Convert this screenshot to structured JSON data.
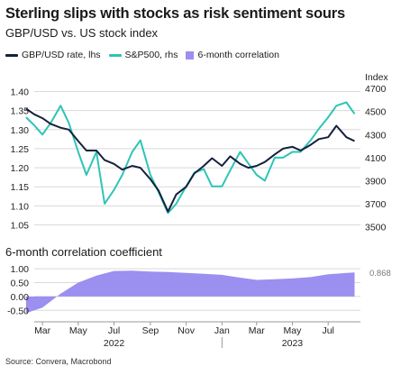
{
  "title": "Sterling slips with stocks as risk sentiment sours",
  "subtitle": "GBP/USD vs. US stock index",
  "source": "Source: Convera, Macrobond",
  "colors": {
    "gbpusd": "#14213d",
    "sp500": "#2ec4b6",
    "correlation": "#9b8ff0",
    "grid": "#d9d9d9"
  },
  "chart_data": [
    {
      "type": "line",
      "legend": [
        {
          "name": "GBP/USD rate, lhs",
          "swatch": "line",
          "color": "#14213d"
        },
        {
          "name": "S&P500, rhs",
          "swatch": "line",
          "color": "#2ec4b6"
        },
        {
          "name": "6-month correlation",
          "swatch": "box",
          "color": "#9b8ff0"
        }
      ],
      "y_left": {
        "ticks": [
          "1.40",
          "1.35",
          "1.30",
          "1.25",
          "1.20",
          "1.15",
          "1.10",
          "1.05"
        ],
        "range": [
          1.03,
          1.42
        ]
      },
      "y_right": {
        "label": "Index",
        "ticks": [
          "4700",
          "4500",
          "4300",
          "4100",
          "3900",
          "3700",
          "3500"
        ],
        "range": [
          3450,
          4740
        ]
      },
      "x": [
        "2022-02-01",
        "2022-02-15",
        "2022-03-01",
        "2022-03-15",
        "2022-04-01",
        "2022-04-15",
        "2022-05-01",
        "2022-05-15",
        "2022-06-01",
        "2022-06-15",
        "2022-07-01",
        "2022-07-15",
        "2022-08-01",
        "2022-08-15",
        "2022-09-01",
        "2022-09-15",
        "2022-10-01",
        "2022-10-15",
        "2022-11-01",
        "2022-11-15",
        "2022-12-01",
        "2022-12-15",
        "2023-01-01",
        "2023-01-15",
        "2023-02-01",
        "2023-02-15",
        "2023-03-01",
        "2023-03-15",
        "2023-04-01",
        "2023-04-15",
        "2023-05-01",
        "2023-05-15",
        "2023-06-01",
        "2023-06-15",
        "2023-07-01",
        "2023-07-15",
        "2023-08-01",
        "2023-08-15"
      ],
      "series": [
        {
          "name": "GBP/USD rate, lhs",
          "axis": "left",
          "values": [
            1.355,
            1.34,
            1.33,
            1.315,
            1.305,
            1.3,
            1.27,
            1.245,
            1.245,
            1.22,
            1.21,
            1.195,
            1.205,
            1.2,
            1.17,
            1.14,
            1.085,
            1.13,
            1.15,
            1.185,
            1.205,
            1.225,
            1.205,
            1.23,
            1.21,
            1.2,
            1.205,
            1.215,
            1.235,
            1.25,
            1.255,
            1.245,
            1.26,
            1.275,
            1.28,
            1.31,
            1.28,
            1.27
          ]
        },
        {
          "name": "S&P500, rhs",
          "axis": "right",
          "values": [
            4450,
            4380,
            4300,
            4400,
            4550,
            4400,
            4150,
            3950,
            4150,
            3700,
            3820,
            3950,
            4150,
            4250,
            3950,
            3800,
            3620,
            3700,
            3850,
            3970,
            4000,
            3850,
            3850,
            3990,
            4150,
            4050,
            3950,
            3900,
            4100,
            4100,
            4150,
            4150,
            4250,
            4350,
            4450,
            4550,
            4580,
            4480
          ]
        }
      ]
    },
    {
      "type": "area",
      "title": "6-month correlation coefficient",
      "y": {
        "ticks": [
          "1.00",
          "0.50",
          "0.00",
          "-0.50"
        ],
        "range": [
          -0.75,
          1.2
        ]
      },
      "last_value_label": "0.868",
      "x": [
        "2022-02-01",
        "2022-03-01",
        "2022-04-01",
        "2022-05-01",
        "2022-06-01",
        "2022-07-01",
        "2022-08-01",
        "2022-09-01",
        "2022-10-01",
        "2022-11-01",
        "2022-12-01",
        "2023-01-01",
        "2023-02-01",
        "2023-03-01",
        "2023-04-01",
        "2023-05-01",
        "2023-06-01",
        "2023-07-01",
        "2023-08-01",
        "2023-08-15"
      ],
      "series": [
        {
          "name": "6-month correlation",
          "values": [
            -0.6,
            -0.4,
            0.1,
            0.5,
            0.75,
            0.92,
            0.93,
            0.9,
            0.88,
            0.85,
            0.82,
            0.78,
            0.68,
            0.6,
            0.62,
            0.65,
            0.7,
            0.8,
            0.85,
            0.868
          ]
        }
      ]
    }
  ],
  "x_axis": {
    "months": [
      "Mar",
      "May",
      "Jul",
      "Sep",
      "Nov",
      "Jan",
      "Mar",
      "May",
      "Jul"
    ],
    "month_dates": [
      "2022-03-01",
      "2022-05-01",
      "2022-07-01",
      "2022-09-01",
      "2022-11-01",
      "2023-01-01",
      "2023-03-01",
      "2023-05-01",
      "2023-07-01"
    ],
    "years": [
      "2022",
      "2023"
    ],
    "year_dates": [
      "2022-07-01",
      "2023-05-01"
    ]
  }
}
